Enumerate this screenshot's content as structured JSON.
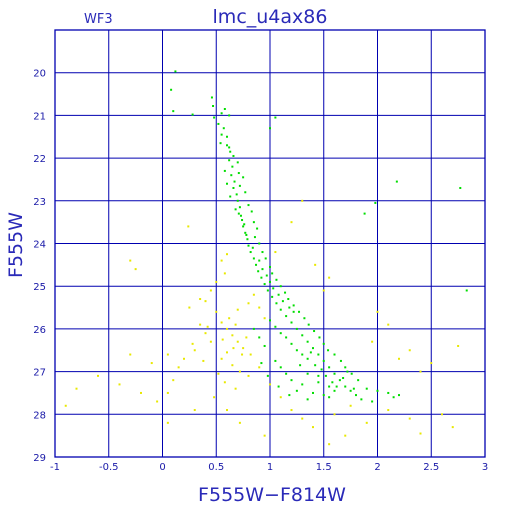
{
  "chart_data": {
    "type": "scatter",
    "title": "lmc_u4ax86",
    "corner_label": "WF3",
    "xlabel": "F555W−F814W",
    "ylabel": "F555W",
    "xlim": [
      -1,
      3
    ],
    "ylim": [
      29,
      19
    ],
    "y_inverted": true,
    "grid": true,
    "x_ticks": [
      -1,
      -0.5,
      0,
      0.5,
      1,
      1.5,
      2,
      2.5,
      3
    ],
    "x_tick_labels": [
      "-1",
      "-0.5",
      "0",
      "0.5",
      "1",
      "1.5",
      "2",
      "2.5",
      "3"
    ],
    "y_ticks": [
      20,
      21,
      22,
      23,
      24,
      25,
      26,
      27,
      28,
      29
    ],
    "y_tick_labels": [
      "20",
      "21",
      "22",
      "23",
      "24",
      "25",
      "26",
      "27",
      "28",
      "29"
    ],
    "colors": {
      "frame": "#0000b0",
      "text": "#2a2ab8",
      "series_green": "#00dd00",
      "series_yellow": "#e8e800"
    },
    "series": [
      {
        "color": "#00dd00",
        "points": [
          [
            0.12,
            19.97
          ],
          [
            0.08,
            20.4
          ],
          [
            0.1,
            20.9
          ],
          [
            0.28,
            20.98
          ],
          [
            0.46,
            20.58
          ],
          [
            0.47,
            20.78
          ],
          [
            0.48,
            21.05
          ],
          [
            0.55,
            20.95
          ],
          [
            0.58,
            20.85
          ],
          [
            0.62,
            21.0
          ],
          [
            0.57,
            21.3
          ],
          [
            0.6,
            21.5
          ],
          [
            0.6,
            21.7
          ],
          [
            0.63,
            21.85
          ],
          [
            0.62,
            22.05
          ],
          [
            0.65,
            22.2
          ],
          [
            0.64,
            22.4
          ],
          [
            0.67,
            22.55
          ],
          [
            0.66,
            22.7
          ],
          [
            0.69,
            22.85
          ],
          [
            0.7,
            23.0
          ],
          [
            0.72,
            23.15
          ],
          [
            0.71,
            23.3
          ],
          [
            0.74,
            23.45
          ],
          [
            0.75,
            23.6
          ],
          [
            0.77,
            23.75
          ],
          [
            0.79,
            23.9
          ],
          [
            0.8,
            24.05
          ],
          [
            0.82,
            24.2
          ],
          [
            0.85,
            24.35
          ],
          [
            0.87,
            24.5
          ],
          [
            0.89,
            24.65
          ],
          [
            0.92,
            24.8
          ],
          [
            0.95,
            24.95
          ],
          [
            0.98,
            25.1
          ],
          [
            1.02,
            25.25
          ],
          [
            1.06,
            25.4
          ],
          [
            1.1,
            25.55
          ],
          [
            1.15,
            25.7
          ],
          [
            1.2,
            25.85
          ],
          [
            1.25,
            26.0
          ],
          [
            1.3,
            26.15
          ],
          [
            1.35,
            26.3
          ],
          [
            1.4,
            26.45
          ],
          [
            1.45,
            26.6
          ],
          [
            1.5,
            26.75
          ],
          [
            1.55,
            26.9
          ],
          [
            1.6,
            27.05
          ],
          [
            1.65,
            27.2
          ],
          [
            1.7,
            27.35
          ],
          [
            1.75,
            27.45
          ],
          [
            1.8,
            27.55
          ],
          [
            1.05,
            21.05
          ],
          [
            1.0,
            21.3
          ],
          [
            0.58,
            22.3
          ],
          [
            0.6,
            22.6
          ],
          [
            0.63,
            22.9
          ],
          [
            0.68,
            23.2
          ],
          [
            0.73,
            23.35
          ],
          [
            0.76,
            23.55
          ],
          [
            0.78,
            23.8
          ],
          [
            0.84,
            24.1
          ],
          [
            0.9,
            24.4
          ],
          [
            0.93,
            24.6
          ],
          [
            0.97,
            24.75
          ],
          [
            1.0,
            24.9
          ],
          [
            1.03,
            25.05
          ],
          [
            1.08,
            25.2
          ],
          [
            1.12,
            25.35
          ],
          [
            1.18,
            25.5
          ],
          [
            1.22,
            25.6
          ],
          [
            1.0,
            25.8
          ],
          [
            1.05,
            25.95
          ],
          [
            1.1,
            26.1
          ],
          [
            1.15,
            26.2
          ],
          [
            1.2,
            26.35
          ],
          [
            1.25,
            26.5
          ],
          [
            1.3,
            26.6
          ],
          [
            1.35,
            26.7
          ],
          [
            1.42,
            26.85
          ],
          [
            1.48,
            26.95
          ],
          [
            1.52,
            27.1
          ],
          [
            1.58,
            27.25
          ],
          [
            1.62,
            27.35
          ],
          [
            1.68,
            27.15
          ],
          [
            1.72,
            27.0
          ],
          [
            1.3,
            27.3
          ],
          [
            1.25,
            27.45
          ],
          [
            1.2,
            27.2
          ],
          [
            1.15,
            27.05
          ],
          [
            1.1,
            26.9
          ],
          [
            1.05,
            26.75
          ],
          [
            0.95,
            26.4
          ],
          [
            0.9,
            26.2
          ],
          [
            0.85,
            26.0
          ],
          [
            1.4,
            27.5
          ],
          [
            1.5,
            27.55
          ],
          [
            1.6,
            27.45
          ],
          [
            1.45,
            27.25
          ],
          [
            1.35,
            27.05
          ],
          [
            1.28,
            26.85
          ],
          [
            1.38,
            26.55
          ],
          [
            1.9,
            27.4
          ],
          [
            2.0,
            27.45
          ],
          [
            2.1,
            27.5
          ],
          [
            2.15,
            27.6
          ],
          [
            1.95,
            27.7
          ],
          [
            1.85,
            27.65
          ],
          [
            2.2,
            27.55
          ],
          [
            2.18,
            22.55
          ],
          [
            2.77,
            22.7
          ],
          [
            2.83,
            25.1
          ],
          [
            1.98,
            23.05
          ],
          [
            1.88,
            23.3
          ],
          [
            0.52,
            21.2
          ],
          [
            0.55,
            21.45
          ],
          [
            0.54,
            21.65
          ],
          [
            0.62,
            21.75
          ],
          [
            0.66,
            21.95
          ],
          [
            0.7,
            22.1
          ],
          [
            0.71,
            22.35
          ],
          [
            0.75,
            22.45
          ],
          [
            0.72,
            22.65
          ],
          [
            0.77,
            22.8
          ],
          [
            0.8,
            23.1
          ],
          [
            0.83,
            23.25
          ],
          [
            0.85,
            23.5
          ],
          [
            0.88,
            23.65
          ],
          [
            0.86,
            23.85
          ],
          [
            0.9,
            24.0
          ],
          [
            0.93,
            24.2
          ],
          [
            0.96,
            24.35
          ],
          [
            1.0,
            24.55
          ],
          [
            1.02,
            24.7
          ],
          [
            1.06,
            24.85
          ],
          [
            1.1,
            25.0
          ],
          [
            1.14,
            25.15
          ],
          [
            1.17,
            25.3
          ],
          [
            1.22,
            25.45
          ],
          [
            1.27,
            25.6
          ],
          [
            1.32,
            25.75
          ],
          [
            1.36,
            25.9
          ],
          [
            1.41,
            26.05
          ],
          [
            1.46,
            26.2
          ],
          [
            1.5,
            26.35
          ],
          [
            1.54,
            26.5
          ],
          [
            1.6,
            26.6
          ],
          [
            1.66,
            26.75
          ],
          [
            1.7,
            26.9
          ],
          [
            1.76,
            27.05
          ],
          [
            1.82,
            27.2
          ],
          [
            1.78,
            27.4
          ],
          [
            1.55,
            27.6
          ],
          [
            1.35,
            27.65
          ],
          [
            1.18,
            27.55
          ],
          [
            1.08,
            27.35
          ],
          [
            0.98,
            27.1
          ],
          [
            0.92,
            26.8
          ],
          [
            1.55,
            27.35
          ],
          [
            1.45,
            27.1
          ]
        ]
      },
      {
        "color": "#e8e800",
        "points": [
          [
            0.6,
            24.25
          ],
          [
            0.55,
            24.4
          ],
          [
            0.58,
            24.7
          ],
          [
            0.45,
            25.1
          ],
          [
            0.4,
            25.35
          ],
          [
            0.5,
            25.6
          ],
          [
            0.55,
            25.85
          ],
          [
            0.6,
            26.0
          ],
          [
            0.65,
            26.15
          ],
          [
            0.7,
            26.3
          ],
          [
            0.75,
            26.45
          ],
          [
            0.6,
            26.55
          ],
          [
            0.55,
            26.7
          ],
          [
            0.65,
            26.85
          ],
          [
            0.72,
            27.0
          ],
          [
            0.8,
            27.1
          ],
          [
            0.45,
            26.3
          ],
          [
            0.4,
            26.1
          ],
          [
            0.35,
            25.9
          ],
          [
            0.3,
            26.5
          ],
          [
            0.2,
            26.7
          ],
          [
            0.15,
            26.9
          ],
          [
            0.1,
            27.2
          ],
          [
            0.05,
            27.5
          ],
          [
            -0.05,
            27.7
          ],
          [
            -0.2,
            27.5
          ],
          [
            -0.4,
            27.3
          ],
          [
            -0.6,
            27.1
          ],
          [
            -0.8,
            27.4
          ],
          [
            -0.9,
            27.8
          ],
          [
            -0.3,
            26.6
          ],
          [
            -0.1,
            26.8
          ],
          [
            0.05,
            26.6
          ],
          [
            0.25,
            25.5
          ],
          [
            0.35,
            25.3
          ],
          [
            0.5,
            24.9
          ],
          [
            0.85,
            25.2
          ],
          [
            0.9,
            25.5
          ],
          [
            0.95,
            25.75
          ],
          [
            0.78,
            26.2
          ],
          [
            0.82,
            26.6
          ],
          [
            0.9,
            26.9
          ],
          [
            1.0,
            27.3
          ],
          [
            1.1,
            27.6
          ],
          [
            1.2,
            27.9
          ],
          [
            1.3,
            28.1
          ],
          [
            1.4,
            28.3
          ],
          [
            1.6,
            28.0
          ],
          [
            1.75,
            27.8
          ],
          [
            1.9,
            28.2
          ],
          [
            2.1,
            27.9
          ],
          [
            2.3,
            28.1
          ],
          [
            2.6,
            28.0
          ],
          [
            2.7,
            28.3
          ],
          [
            2.2,
            26.7
          ],
          [
            2.3,
            26.5
          ],
          [
            2.5,
            26.8
          ],
          [
            2.75,
            26.4
          ],
          [
            2.4,
            27.0
          ],
          [
            1.2,
            23.5
          ],
          [
            1.3,
            23.0
          ],
          [
            0.24,
            23.6
          ],
          [
            -0.25,
            24.6
          ],
          [
            -0.3,
            24.4
          ],
          [
            1.5,
            25.1
          ],
          [
            1.55,
            24.8
          ],
          [
            1.42,
            24.5
          ],
          [
            1.05,
            24.2
          ],
          [
            2.0,
            25.6
          ],
          [
            2.1,
            25.9
          ],
          [
            1.95,
            26.3
          ],
          [
            0.48,
            27.6
          ],
          [
            0.6,
            27.9
          ],
          [
            0.72,
            28.2
          ],
          [
            0.3,
            27.9
          ],
          [
            0.05,
            28.2
          ],
          [
            0.95,
            28.5
          ],
          [
            1.55,
            28.7
          ],
          [
            2.4,
            28.45
          ],
          [
            1.7,
            28.5
          ],
          [
            0.62,
            25.75
          ],
          [
            0.68,
            25.9
          ],
          [
            0.56,
            26.25
          ],
          [
            0.66,
            26.45
          ],
          [
            0.74,
            26.6
          ],
          [
            0.52,
            27.05
          ],
          [
            0.38,
            26.75
          ],
          [
            0.28,
            26.35
          ],
          [
            0.7,
            25.55
          ],
          [
            0.8,
            25.4
          ],
          [
            0.42,
            25.95
          ],
          [
            0.58,
            27.25
          ],
          [
            0.68,
            27.4
          ]
        ]
      }
    ]
  }
}
